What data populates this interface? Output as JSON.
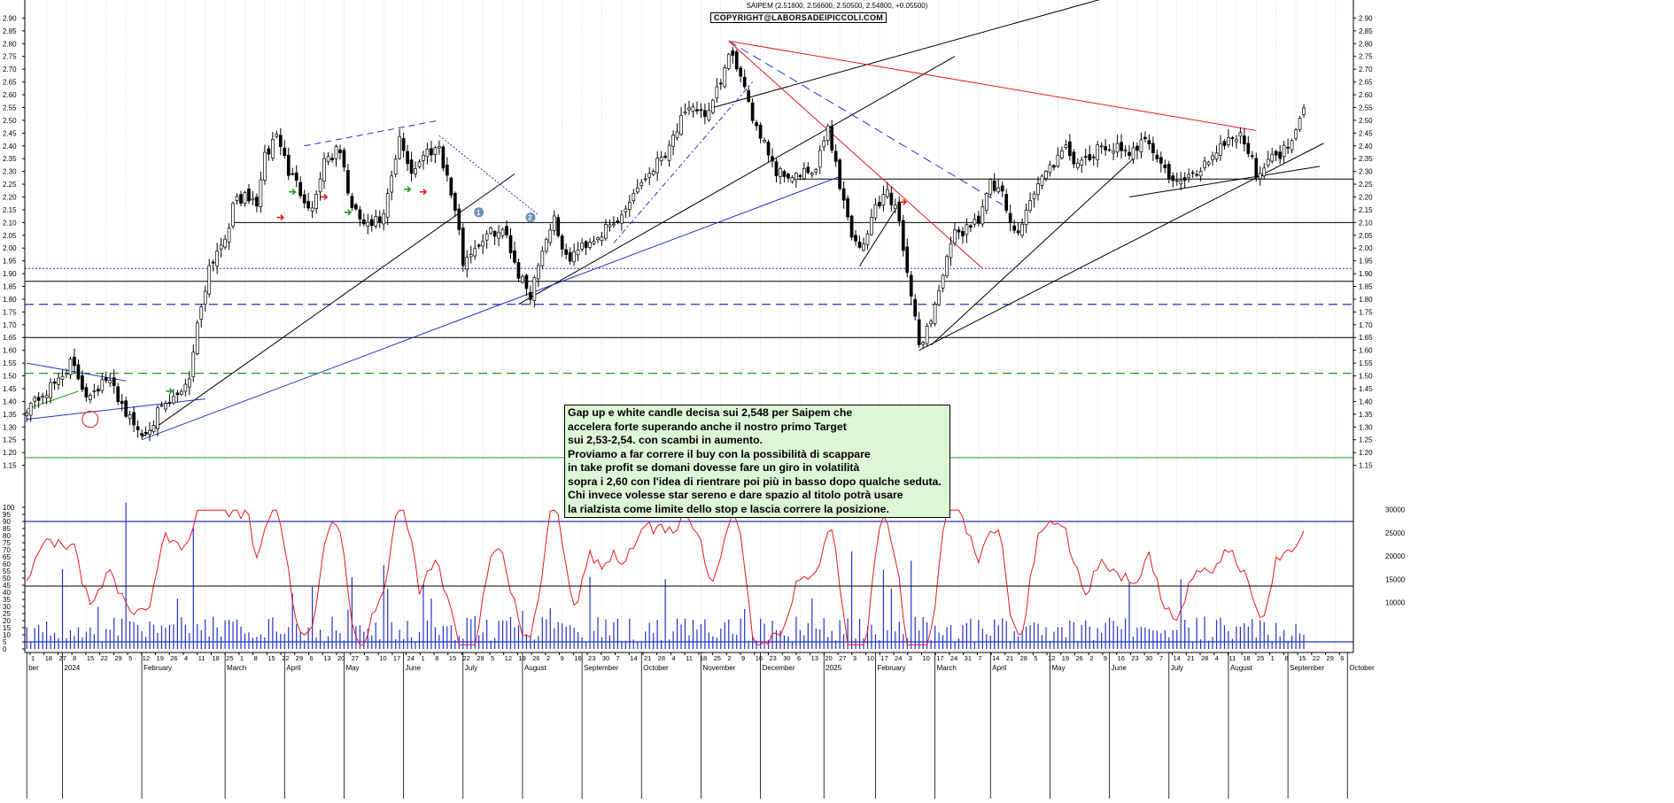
{
  "header": {
    "title": "SAIPEM (2.51800, 2.56600, 2.50500, 2.54800, +0.05500)",
    "copyright": "COPYRIGHT@LABORSADEIPICCOLI.COM"
  },
  "annotation": {
    "lines": [
      "Gap up e white candle decisa sui 2,548 per Saipem che",
      "accelera forte superando anche il nostro primo Target",
      "sui 2,53-2,54. con scambi in aumento.",
      "Proviamo a far correre il buy con la possibilità di scappare",
      "in take profit se domani dovesse fare un giro in volatilità",
      "sopra i 2,60 con l'idea di rientrare poi più in basso dopo qualche seduta.",
      "Chi invece volesse star sereno e dare spazio al titolo potrà usare",
      "la rialzista come limite dello stop e lascia correre la posizione."
    ]
  },
  "markers": [
    "1",
    "2"
  ],
  "chart_data": [
    {
      "type": "candlestick",
      "title": "SAIPEM",
      "ylim": [
        1.1,
        2.95
      ],
      "yticks": [
        1.15,
        1.2,
        1.25,
        1.3,
        1.35,
        1.4,
        1.45,
        1.5,
        1.55,
        1.6,
        1.65,
        1.7,
        1.75,
        1.8,
        1.85,
        1.9,
        1.95,
        2.0,
        2.05,
        2.1,
        2.15,
        2.2,
        2.25,
        2.3,
        2.35,
        2.4,
        2.45,
        2.5,
        2.55,
        2.6,
        2.65,
        2.7,
        2.75,
        2.8,
        2.85,
        2.9
      ],
      "price_path": [
        [
          0,
          1.38
        ],
        [
          6,
          1.45
        ],
        [
          11,
          1.55
        ],
        [
          15,
          1.43
        ],
        [
          20,
          1.48
        ],
        [
          22,
          1.45
        ],
        [
          26,
          1.33
        ],
        [
          29,
          1.27
        ],
        [
          33,
          1.35
        ],
        [
          38,
          1.42
        ],
        [
          41,
          1.5
        ],
        [
          43,
          1.7
        ],
        [
          46,
          1.93
        ],
        [
          50,
          2.05
        ],
        [
          53,
          2.2
        ],
        [
          58,
          2.18
        ],
        [
          60,
          2.35
        ],
        [
          63,
          2.45
        ],
        [
          66,
          2.3
        ],
        [
          70,
          2.2
        ],
        [
          72,
          2.15
        ],
        [
          75,
          2.35
        ],
        [
          79,
          2.38
        ],
        [
          82,
          2.15
        ],
        [
          86,
          2.08
        ],
        [
          90,
          2.12
        ],
        [
          94,
          2.42
        ],
        [
          97,
          2.3
        ],
        [
          101,
          2.38
        ],
        [
          104,
          2.4
        ],
        [
          108,
          2.15
        ],
        [
          110,
          1.95
        ],
        [
          114,
          2.02
        ],
        [
          118,
          2.07
        ],
        [
          121,
          2.05
        ],
        [
          124,
          1.9
        ],
        [
          127,
          1.82
        ],
        [
          130,
          2.0
        ],
        [
          133,
          2.12
        ],
        [
          136,
          1.95
        ],
        [
          141,
          2.02
        ],
        [
          144,
          2.05
        ],
        [
          149,
          2.1
        ],
        [
          153,
          2.22
        ],
        [
          157,
          2.3
        ],
        [
          161,
          2.38
        ],
        [
          165,
          2.5
        ],
        [
          169,
          2.55
        ],
        [
          172,
          2.52
        ],
        [
          175,
          2.65
        ],
        [
          177,
          2.75
        ],
        [
          179,
          2.72
        ],
        [
          182,
          2.55
        ],
        [
          186,
          2.42
        ],
        [
          189,
          2.3
        ],
        [
          194,
          2.28
        ],
        [
          199,
          2.3
        ],
        [
          202,
          2.48
        ],
        [
          205,
          2.25
        ],
        [
          208,
          2.05
        ],
        [
          211,
          2.0
        ],
        [
          214,
          2.17
        ],
        [
          217,
          2.22
        ],
        [
          220,
          2.12
        ],
        [
          223,
          1.8
        ],
        [
          225,
          1.62
        ],
        [
          228,
          1.72
        ],
        [
          231,
          1.9
        ],
        [
          234,
          2.05
        ],
        [
          237,
          2.08
        ],
        [
          240,
          2.12
        ],
        [
          243,
          2.25
        ],
        [
          246,
          2.2
        ],
        [
          249,
          2.05
        ],
        [
          252,
          2.15
        ],
        [
          255,
          2.25
        ],
        [
          258,
          2.32
        ],
        [
          262,
          2.38
        ],
        [
          266,
          2.32
        ],
        [
          270,
          2.38
        ],
        [
          274,
          2.4
        ],
        [
          278,
          2.35
        ],
        [
          282,
          2.45
        ],
        [
          286,
          2.32
        ],
        [
          290,
          2.25
        ],
        [
          294,
          2.28
        ],
        [
          298,
          2.35
        ],
        [
          302,
          2.42
        ],
        [
          306,
          2.45
        ],
        [
          310,
          2.3
        ],
        [
          314,
          2.35
        ],
        [
          318,
          2.4
        ],
        [
          320,
          2.48
        ],
        [
          322,
          2.548
        ]
      ],
      "last_close": 2.548,
      "horizontal_levels": [
        2.27,
        2.1,
        1.92,
        1.87,
        1.78,
        1.65,
        1.51,
        1.18
      ],
      "months": [
        "ber",
        "2024",
        "February",
        "March",
        "April",
        "May",
        "June",
        "July",
        "August",
        "September",
        "October",
        "November",
        "December",
        "2025",
        "February",
        "March",
        "April",
        "May",
        "June",
        "July",
        "August",
        "September",
        "October"
      ],
      "month_positions": [
        0,
        9,
        29,
        50,
        65,
        80,
        95,
        110,
        125,
        140,
        155,
        170,
        185,
        201,
        214,
        229,
        243,
        258,
        273,
        288,
        303,
        318,
        333
      ],
      "day_ticks": [
        "1",
        "18",
        "27",
        "8",
        "15",
        "22",
        "29",
        "5",
        "12",
        "19",
        "26",
        "4",
        "11",
        "18",
        "25",
        "1",
        "8",
        "15",
        "22",
        "29",
        "6",
        "13",
        "20",
        "27",
        "3",
        "10",
        "17",
        "24",
        "1",
        "8",
        "15",
        "22",
        "29",
        "5",
        "12",
        "19",
        "26",
        "2",
        "9",
        "16",
        "23",
        "30",
        "7",
        "14",
        "21",
        "28",
        "4",
        "11",
        "18",
        "25",
        "2",
        "9",
        "16",
        "23",
        "30",
        "6",
        "13",
        "20",
        "27",
        "3",
        "10",
        "17",
        "24",
        "3",
        "10",
        "17",
        "24",
        "31",
        "7",
        "14",
        "21",
        "28",
        "5",
        "12",
        "19",
        "26",
        "2",
        "9",
        "16",
        "23",
        "30",
        "7",
        "14",
        "21",
        "28",
        "4",
        "11",
        "18",
        "25",
        "1",
        "8",
        "15",
        "22",
        "29",
        "6"
      ]
    },
    {
      "type": "line",
      "ylim": [
        0,
        105
      ],
      "yticks": [
        0,
        5,
        10,
        15,
        20,
        25,
        30,
        35,
        40,
        45,
        50,
        55,
        60,
        65,
        70,
        75,
        80,
        85,
        90,
        95,
        100
      ],
      "guides": [
        90,
        5
      ],
      "colors": {
        "oscillator": "#e8191e",
        "volume": "#2432c4"
      },
      "volume_ticks": [
        10000,
        15000,
        20000,
        25000,
        30000
      ],
      "volume_max": 32000
    }
  ]
}
